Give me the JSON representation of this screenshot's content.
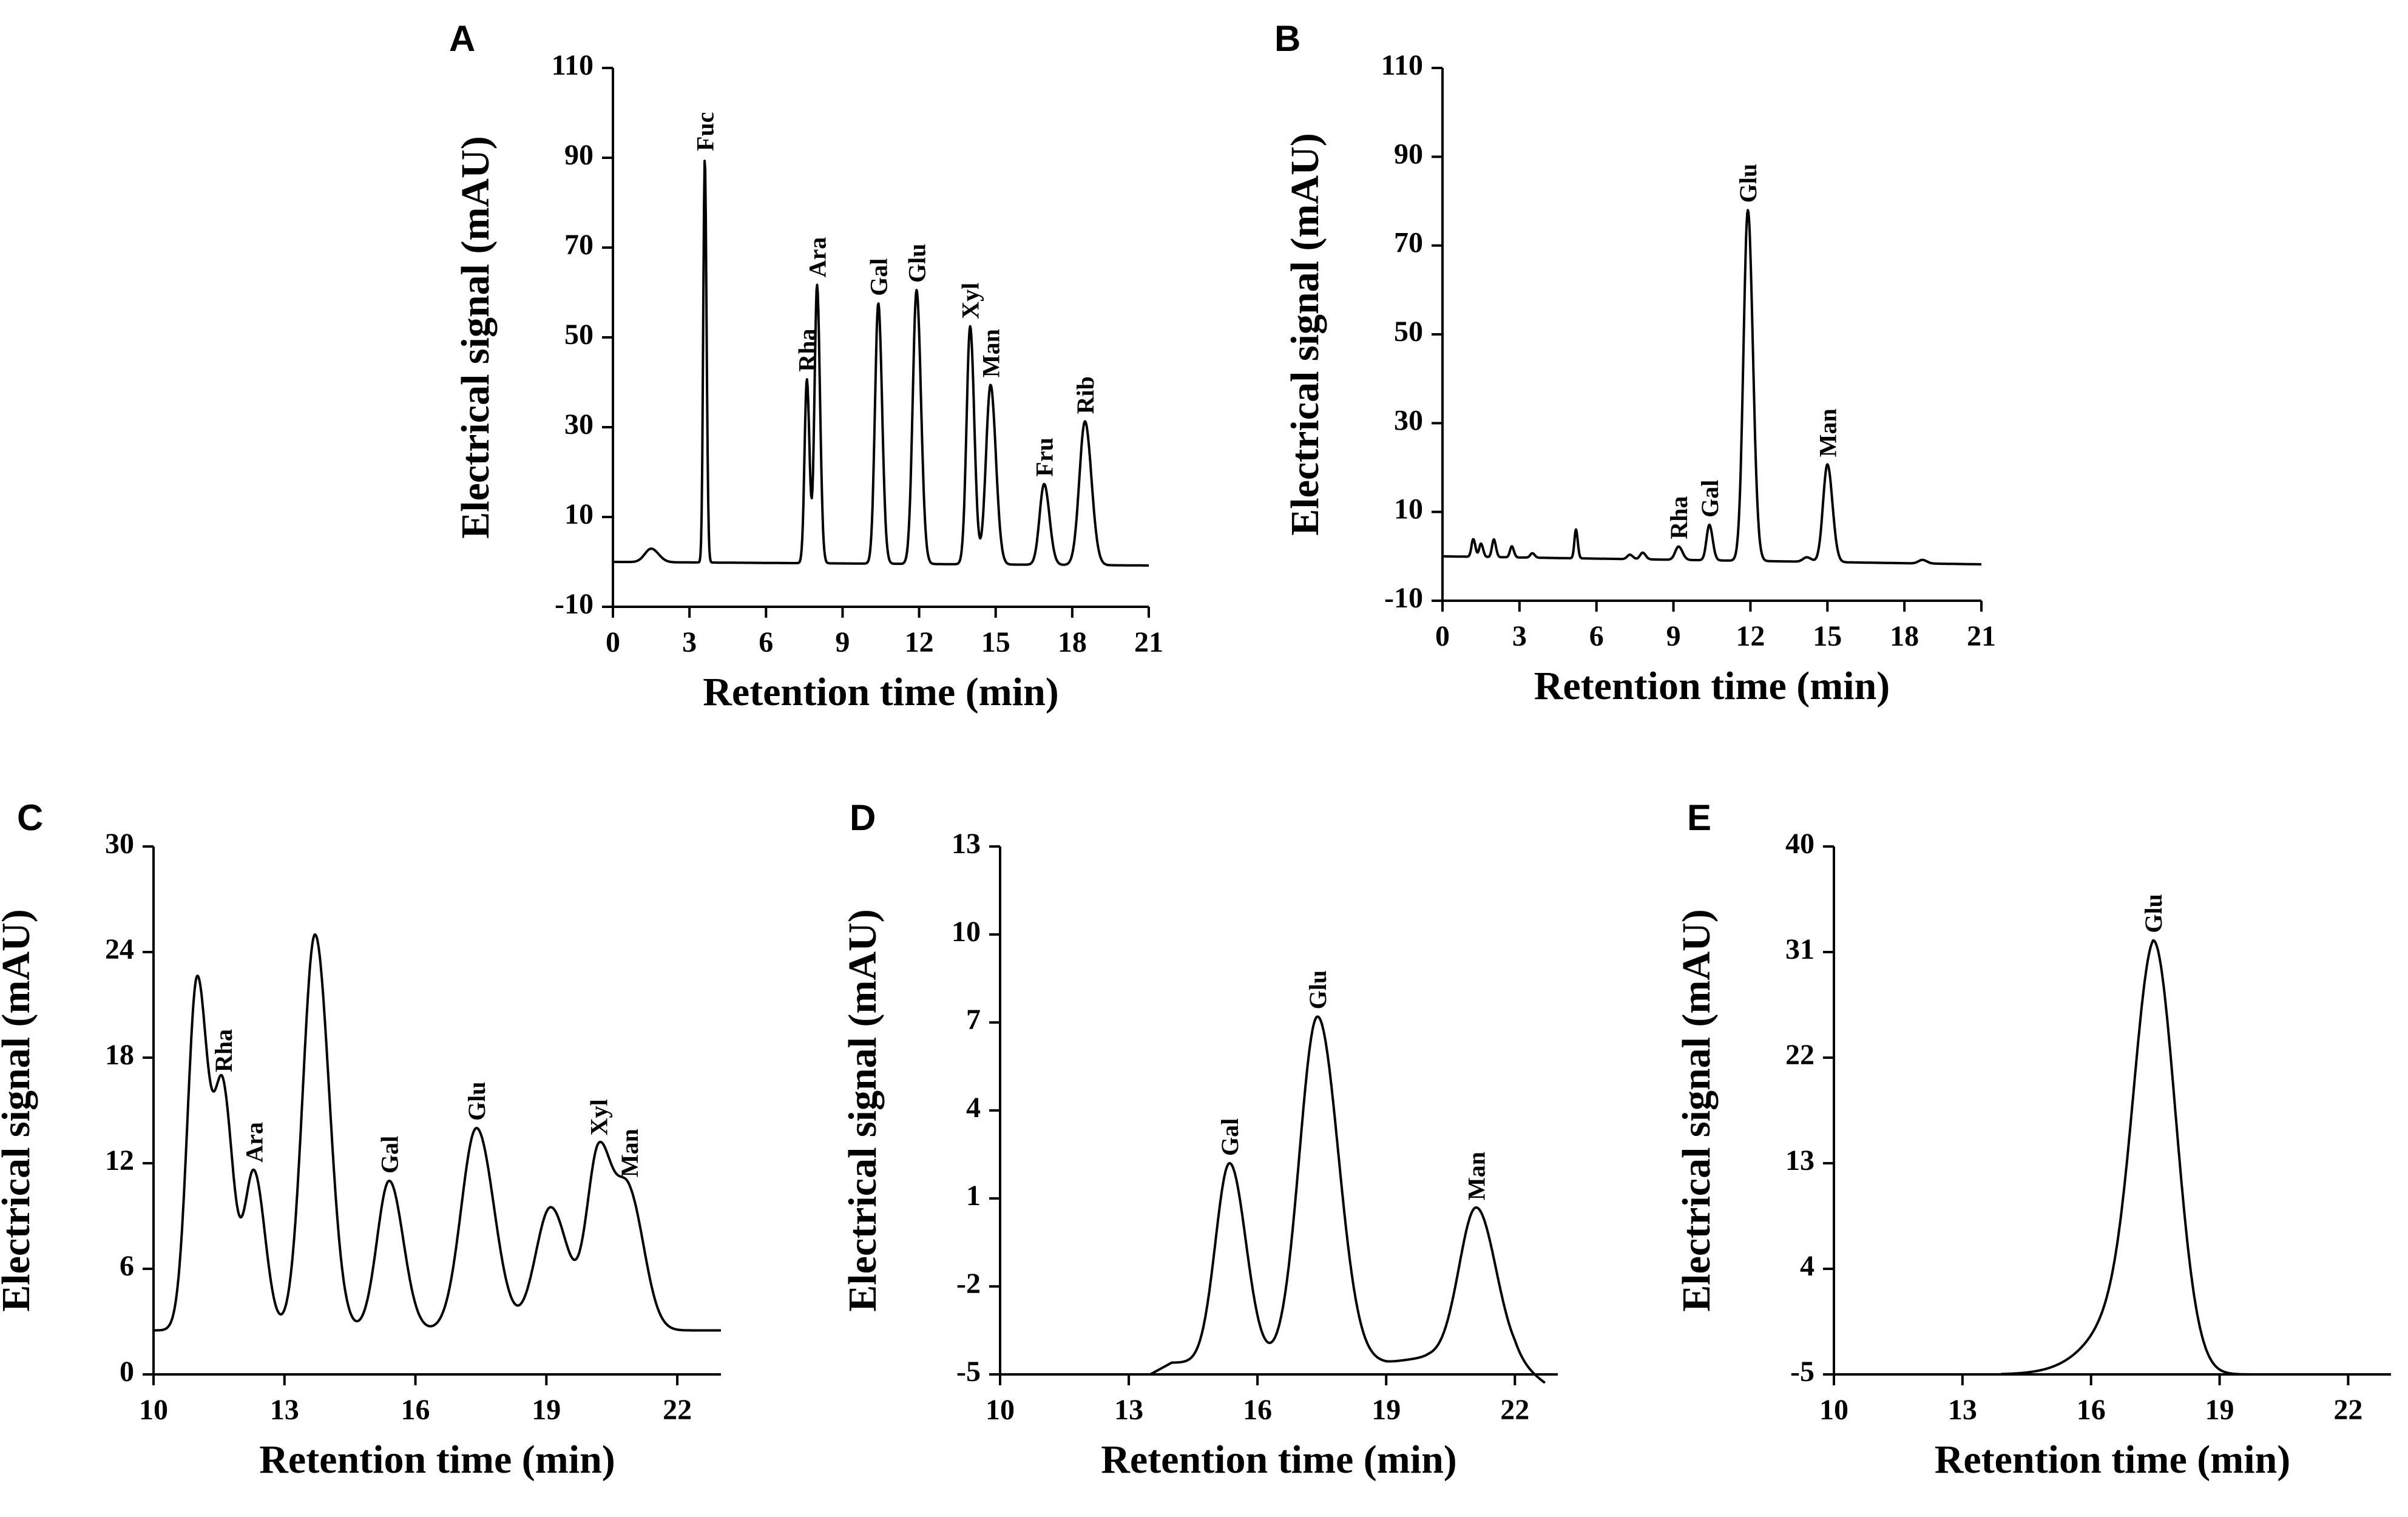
{
  "chart_data": [
    {
      "panel": "A",
      "type": "line",
      "xlabel": "Retention time (min)",
      "ylabel": "Electrical signal  (mAU)",
      "xlim": [
        0,
        21
      ],
      "ylim": [
        -10,
        110
      ],
      "xticks": [
        0,
        3,
        6,
        9,
        12,
        15,
        18,
        21
      ],
      "yticks": [
        -10,
        10,
        30,
        50,
        70,
        90,
        110
      ],
      "baseline": [
        [
          0,
          0
        ],
        [
          21,
          -0.8
        ]
      ],
      "peaks": [
        {
          "label": "",
          "t": 1.5,
          "height": 3,
          "width": 0.25
        },
        {
          "label": "Fuc",
          "t": 3.6,
          "height": 90,
          "width": 0.06
        },
        {
          "label": "Rha",
          "t": 7.6,
          "height": 41,
          "width": 0.09
        },
        {
          "label": "Ara",
          "t": 8.0,
          "height": 62,
          "width": 0.1
        },
        {
          "label": "Gal",
          "t": 10.4,
          "height": 58,
          "width": 0.13
        },
        {
          "label": "Glu",
          "t": 11.9,
          "height": 61,
          "width": 0.15
        },
        {
          "label": "Xyl",
          "t": 14.0,
          "height": 53,
          "width": 0.14
        },
        {
          "label": "Man",
          "t": 14.8,
          "height": 40,
          "width": 0.18
        },
        {
          "label": "Fru",
          "t": 16.9,
          "height": 18,
          "width": 0.18
        },
        {
          "label": "Rib",
          "t": 18.5,
          "height": 32,
          "width": 0.22
        }
      ]
    },
    {
      "panel": "B",
      "type": "line",
      "xlabel": "Retention time (min)",
      "ylabel": "Electrical signal (mAU)",
      "xlim": [
        0,
        21
      ],
      "ylim": [
        -10,
        110
      ],
      "xticks": [
        0,
        3,
        6,
        9,
        12,
        15,
        18,
        21
      ],
      "yticks": [
        -10,
        10,
        30,
        50,
        70,
        90,
        110
      ],
      "baseline": [
        [
          0,
          0
        ],
        [
          21,
          -1.8
        ]
      ],
      "peaks": [
        {
          "label": "",
          "t": 1.2,
          "height": 4,
          "width": 0.07
        },
        {
          "label": "",
          "t": 1.5,
          "height": 3,
          "width": 0.07
        },
        {
          "label": "",
          "t": 2.0,
          "height": 4,
          "width": 0.07
        },
        {
          "label": "",
          "t": 2.7,
          "height": 2.5,
          "width": 0.07
        },
        {
          "label": "",
          "t": 3.5,
          "height": 1,
          "width": 0.08
        },
        {
          "label": "",
          "t": 5.2,
          "height": 6.5,
          "width": 0.06
        },
        {
          "label": "",
          "t": 7.3,
          "height": 1,
          "width": 0.1
        },
        {
          "label": "",
          "t": 7.8,
          "height": 1.5,
          "width": 0.1
        },
        {
          "label": "Rha",
          "t": 9.2,
          "height": 3,
          "width": 0.13
        },
        {
          "label": "Gal",
          "t": 10.4,
          "height": 8,
          "width": 0.11
        },
        {
          "label": "Glu",
          "t": 11.9,
          "height": 79,
          "width": 0.17
        },
        {
          "label": "",
          "t": 14.2,
          "height": 1,
          "width": 0.15
        },
        {
          "label": "Man",
          "t": 15.0,
          "height": 22,
          "width": 0.17
        },
        {
          "label": "",
          "t": 18.7,
          "height": 0.8,
          "width": 0.15
        }
      ]
    },
    {
      "panel": "C",
      "type": "line",
      "xlabel": "Retention time (min)",
      "ylabel": "Electrical signal (mAU)",
      "xlim": [
        10,
        23
      ],
      "ylim": [
        0,
        30
      ],
      "xticks": [
        10,
        13,
        16,
        19,
        22
      ],
      "yticks": [
        0,
        6,
        12,
        18,
        24,
        30
      ],
      "baseline": [
        [
          10,
          2.5
        ],
        [
          23,
          2.5
        ]
      ],
      "peaks": [
        {
          "label": "",
          "t": 11.0,
          "height": 20,
          "width": 0.22
        },
        {
          "label": "Rha",
          "t": 11.6,
          "height": 13,
          "width": 0.2
        },
        {
          "label": "Ara",
          "t": 12.3,
          "height": 9,
          "width": 0.22
        },
        {
          "label": "",
          "t": 13.7,
          "height": 22.5,
          "width": 0.28
        },
        {
          "label": "Gal",
          "t": 15.4,
          "height": 8.5,
          "width": 0.28
        },
        {
          "label": "Glu",
          "t": 17.4,
          "height": 11.5,
          "width": 0.35
        },
        {
          "label": "",
          "t": 19.1,
          "height": 7,
          "width": 0.35
        },
        {
          "label": "Xyl",
          "t": 20.2,
          "height": 10,
          "width": 0.27
        },
        {
          "label": "Man",
          "t": 20.9,
          "height": 7.5,
          "width": 0.3
        }
      ]
    },
    {
      "panel": "D",
      "type": "line",
      "xlabel": "Retention time (min)",
      "ylabel": "Electrical signal (mAU)",
      "xlim": [
        10,
        23
      ],
      "ylim": [
        -5,
        13
      ],
      "xticks": [
        10,
        13,
        16,
        19,
        22
      ],
      "yticks": [
        -5,
        -2,
        1,
        4,
        7,
        10,
        13
      ],
      "baseline": [
        [
          13.5,
          -5
        ],
        [
          14,
          -4.6
        ],
        [
          19,
          -4.6
        ],
        [
          20,
          -4.4
        ],
        [
          22,
          -4.6
        ],
        [
          22.7,
          -5.3
        ]
      ],
      "peaks": [
        {
          "label": "Gal",
          "t": 15.35,
          "height": 6.8,
          "width": 0.33
        },
        {
          "label": "Glu",
          "t": 17.4,
          "height": 11.8,
          "width": 0.42
        },
        {
          "label": "Man",
          "t": 21.1,
          "height": 5.2,
          "width": 0.4
        }
      ]
    },
    {
      "panel": "E",
      "type": "line",
      "xlabel": "Retention time (min)",
      "ylabel": "Electrical signal (mAU)",
      "xlim": [
        10,
        23
      ],
      "ylim": [
        -5,
        40
      ],
      "xticks": [
        10,
        13,
        16,
        19,
        22
      ],
      "yticks": [
        -5,
        4,
        13,
        22,
        31,
        40
      ],
      "baseline": [
        [
          13.9,
          -5
        ],
        [
          23,
          -5
        ]
      ],
      "peaks": [
        {
          "label": "Glu",
          "t": 17.45,
          "height": 37,
          "width": 0.45,
          "tail": 2.2
        }
      ]
    }
  ]
}
